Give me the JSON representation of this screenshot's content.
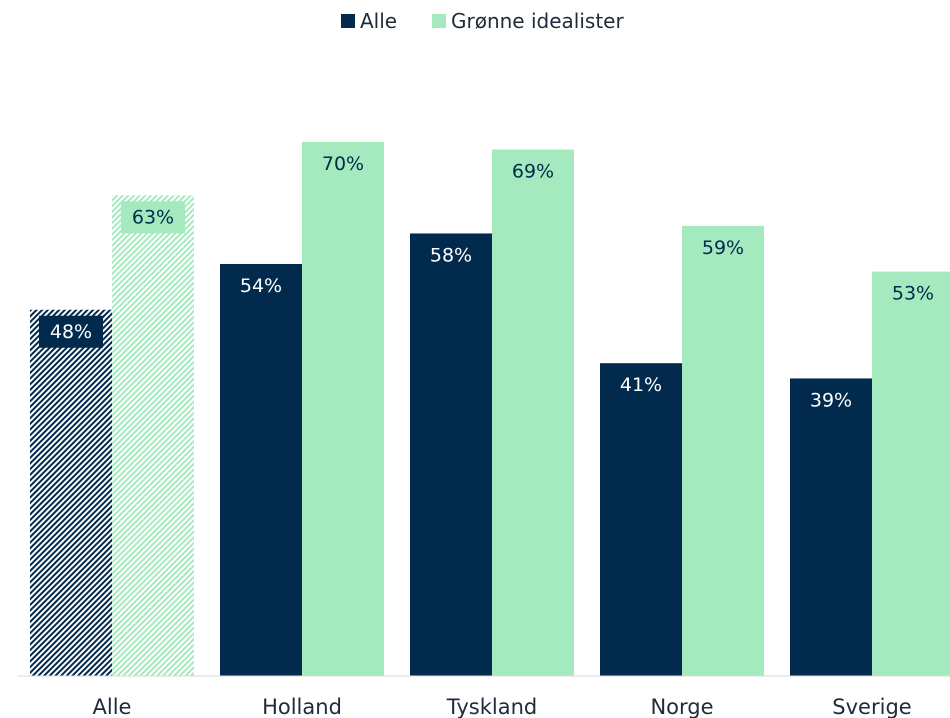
{
  "chart_data": {
    "type": "bar",
    "title": "",
    "xlabel": "",
    "ylabel": "",
    "categories": [
      "Alle",
      "Holland",
      "Tyskland",
      "Norge",
      "Sverige"
    ],
    "series": [
      {
        "name": "Alle",
        "values": [
          48,
          54,
          58,
          41,
          39
        ],
        "labels": [
          "48%",
          "54%",
          "58%",
          "41%",
          "39%"
        ]
      },
      {
        "name": "Grønne idealister",
        "values": [
          63,
          70,
          69,
          59,
          53
        ],
        "labels": [
          "63%",
          "70%",
          "69%",
          "59%",
          "53%"
        ]
      }
    ],
    "ylim": [
      0,
      75
    ],
    "grid": false,
    "legend": "top-center",
    "colors": {
      "dark": "#022a4d",
      "light": "#a5eabf",
      "label_on_dark": "#ffffff",
      "label_on_light": "#022a4d"
    },
    "hatched_category": "Alle"
  }
}
